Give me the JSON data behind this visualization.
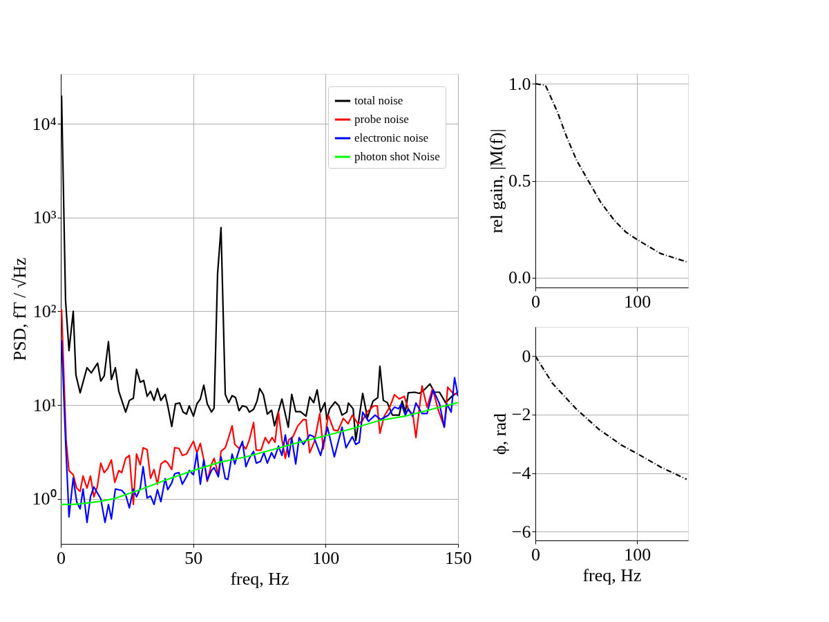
{
  "chart_data": [
    {
      "type": "line",
      "xlabel": "freq, Hz",
      "ylabel": "PSD, fT / √Hz",
      "log": "y",
      "grid": true,
      "legend": "top right",
      "xlim": [
        0,
        150
      ],
      "xticks": [
        0,
        50,
        100,
        150
      ],
      "ylim": [
        0.33,
        34000
      ],
      "yticks": [
        {
          "value": 1,
          "label": "10⁰"
        },
        {
          "value": 10,
          "label": "10¹"
        },
        {
          "value": 100,
          "label": "10²"
        },
        {
          "value": 1000,
          "label": "10³"
        },
        {
          "value": 10000,
          "label": "10⁴"
        }
      ],
      "series": [
        {
          "name": "total noise",
          "color": "#000000",
          "x": [
            0.3,
            1.8,
            3.1,
            4.7,
            5.7,
            7.3,
            9.9,
            11.5,
            13.9,
            15.1,
            16.4,
            18,
            19.1,
            20.6,
            21.9,
            24.5,
            25.9,
            27.4,
            28.6,
            30,
            31.3,
            32.6,
            33.9,
            35.2,
            36.5,
            37.8,
            39.4,
            40.4,
            41.9,
            43.3,
            44.9,
            46.2,
            47.5,
            48.5,
            50.1,
            51.4,
            52.7,
            54,
            55.3,
            56.9,
            57.9,
            59.2,
            60.5,
            62.1,
            63.4,
            64.7,
            66,
            67.3,
            68.6,
            70.2,
            71.2,
            72.8,
            74.1,
            75.1,
            76.5,
            78,
            79.6,
            80.7,
            83.5,
            85.9,
            87.2,
            88.7,
            90.5,
            92.6,
            94,
            95.5,
            96.8,
            98.1,
            99.7,
            100.5,
            101.5,
            103.6,
            105,
            106.2,
            108,
            108.6,
            110.4,
            111.4,
            114,
            115.8,
            117.9,
            119.7,
            120.5,
            121.8,
            123.3,
            125.2,
            127.8,
            128.9,
            130.1,
            131.2,
            133.6,
            135.4,
            137.2,
            139.4,
            141.1,
            143,
            145.3,
            147.7,
            150
          ],
          "values": [
            20000,
            130,
            38,
            100,
            21,
            13.5,
            25,
            22,
            28,
            18,
            20.5,
            47.5,
            18.7,
            25,
            14,
            8.4,
            11.2,
            11.8,
            24,
            17.5,
            18.3,
            12.4,
            14,
            11.2,
            15,
            11.2,
            13,
            9.8,
            5.9,
            10.3,
            10.5,
            8.4,
            8,
            9.8,
            7.6,
            10.3,
            11.6,
            16.3,
            10.3,
            8.4,
            9.3,
            250,
            780,
            13,
            10.6,
            12.6,
            12,
            8.7,
            9.8,
            9.5,
            8.4,
            9,
            11,
            15,
            12.9,
            8,
            8.8,
            6,
            11.6,
            5.8,
            13,
            8.5,
            8.5,
            7.6,
            12.2,
            10.6,
            14.5,
            8.4,
            10.6,
            7,
            9.1,
            10.8,
            9.8,
            7.8,
            8.4,
            10.5,
            9.1,
            4.2,
            13.3,
            7.3,
            11,
            12,
            26,
            11.2,
            10.6,
            7.8,
            7.8,
            11,
            8.4,
            13.5,
            13.7,
            13.3,
            14.5,
            16.8,
            13.7,
            13.7,
            10.6,
            12.4,
            13.7
          ]
        },
        {
          "name": "probe noise",
          "color": "#ff0000",
          "x": [
            0.3,
            2,
            3.1,
            4.7,
            6,
            7.3,
            8.4,
            9.9,
            11.2,
            12.5,
            13.8,
            15.1,
            16.4,
            17.7,
            19.1,
            20.4,
            21.9,
            23,
            24.5,
            25.9,
            27.4,
            28.6,
            30,
            31.1,
            32.6,
            33.9,
            35.2,
            36.5,
            37.8,
            39.4,
            40.4,
            41.9,
            43,
            44.6,
            45.9,
            47.5,
            48.5,
            50.1,
            51.4,
            52.7,
            54,
            55.3,
            56.9,
            57.9,
            59.5,
            60.5,
            62.1,
            63.1,
            64.7,
            65.7,
            67.3,
            68.4,
            69.9,
            71.2,
            72.8,
            73.8,
            75.6,
            77.2,
            78.5,
            79.8,
            80.9,
            82.2,
            83.5,
            84.8,
            86.1,
            87.7,
            89.5,
            91.6,
            92.6,
            94,
            95.8,
            97.8,
            99.1,
            101,
            103.1,
            104.6,
            106.7,
            108.5,
            110.1,
            112.2,
            113.8,
            115.6,
            118.2,
            119.5,
            120.5,
            122.1,
            124.2,
            126,
            127.8,
            129.7,
            131.2,
            133,
            134.1,
            136.4,
            138.3,
            140.4,
            142.4,
            144.8,
            146.1,
            148.2,
            150
          ],
          "values": [
            105,
            4.2,
            2.0,
            1.8,
            1.3,
            1.2,
            1.75,
            1.3,
            1.75,
            1.05,
            1.35,
            2.4,
            1.9,
            2.1,
            2.6,
            1.5,
            2.0,
            1.9,
            2.7,
            2.9,
            0.87,
            3.0,
            2.3,
            3.5,
            3.35,
            1.65,
            2.05,
            1.43,
            2.35,
            2.55,
            2.4,
            2.05,
            3.5,
            3.45,
            2.9,
            3.0,
            3.4,
            4.1,
            3.1,
            3.9,
            2.6,
            1.53,
            2.35,
            2.7,
            1.8,
            3.2,
            3.5,
            4.25,
            6,
            3.8,
            3.45,
            3.8,
            3.4,
            4.25,
            6.5,
            3.3,
            3.3,
            4.5,
            3.9,
            4.5,
            4.0,
            8.4,
            4.25,
            2.7,
            4.25,
            4.6,
            6,
            7,
            7,
            3.1,
            4.1,
            8.1,
            3.4,
            7.8,
            5.4,
            5.3,
            7.2,
            6.3,
            7.8,
            6.3,
            6.7,
            8.4,
            9.8,
            9.8,
            5,
            7.6,
            9.5,
            12.9,
            11.6,
            12.4,
            9.1,
            7.8,
            4.5,
            16,
            9.5,
            15,
            9.1,
            5.8,
            15.5,
            13.3,
            12.9
          ]
        },
        {
          "name": "electronic noise",
          "color": "#0000ff",
          "x": [
            0.3,
            1.8,
            3.1,
            4.7,
            6,
            7.3,
            8.4,
            9.9,
            11.2,
            12.5,
            15.1,
            16.7,
            18,
            19.1,
            20.6,
            23,
            24.5,
            25.9,
            27.4,
            28.6,
            30,
            31.1,
            32.6,
            33.9,
            35.2,
            36.5,
            37.8,
            39.4,
            40.4,
            41.9,
            43,
            44.6,
            45.9,
            47.5,
            48.5,
            50.1,
            51.4,
            52.7,
            54,
            55.3,
            56.9,
            57.9,
            59.5,
            60.5,
            62.1,
            63.1,
            64.7,
            65.7,
            67.3,
            68.6,
            69.9,
            71.2,
            72.8,
            73.8,
            75.4,
            76.7,
            78,
            79.6,
            80.7,
            82.2,
            83.5,
            84.8,
            86.1,
            87.2,
            88.7,
            90,
            91.6,
            94,
            95.5,
            98.1,
            100.7,
            103.3,
            106.2,
            107.7,
            110.1,
            111.4,
            112.7,
            114,
            116.2,
            118.7,
            120.8,
            123.7,
            126,
            127.6,
            128.6,
            130.1,
            131.2,
            132.8,
            134.1,
            136.4,
            138.3,
            140.6,
            143,
            144.8,
            145.8,
            147.4,
            148.7,
            150
          ],
          "values": [
            49,
            4.2,
            0.64,
            1.67,
            0.93,
            0.78,
            1.27,
            0.56,
            1.05,
            1.34,
            1.0,
            0.56,
            0.87,
            0.61,
            1.27,
            1.23,
            1.1,
            0.8,
            1.27,
            1.05,
            1.3,
            2.2,
            1.02,
            1.07,
            0.87,
            1.25,
            0.93,
            1.64,
            1.25,
            1.48,
            1.85,
            1.9,
            1.43,
            1.72,
            2.0,
            1.8,
            3.1,
            1.43,
            2.6,
            1.58,
            2.0,
            2.15,
            1.72,
            2.8,
            1.64,
            1.61,
            3.0,
            2.35,
            3.3,
            4.1,
            2.2,
            2.7,
            3.2,
            2.4,
            2.5,
            3.1,
            2.4,
            3.1,
            2.7,
            3.65,
            2.9,
            4.8,
            2.8,
            4.5,
            2.35,
            4.5,
            3.8,
            4.8,
            4.6,
            2.9,
            5.8,
            2.8,
            5.8,
            3.5,
            4.6,
            3.8,
            4.0,
            8.4,
            6.7,
            7.8,
            7,
            7.8,
            9.5,
            9.1,
            10.3,
            7.8,
            9.1,
            7.6,
            10.5,
            8.1,
            8.1,
            14.5,
            10.3,
            5.8,
            10.3,
            8.4,
            19.6,
            12.4
          ]
        },
        {
          "name": "photon shot Noise",
          "color": "#00ff00",
          "x": [
            0,
            5,
            10,
            15,
            20,
            30,
            40,
            50,
            60,
            70,
            80,
            90,
            100,
            110,
            120,
            130,
            140,
            150
          ],
          "values": [
            0.87,
            0.87,
            0.9,
            0.94,
            1.0,
            1.25,
            1.6,
            2.0,
            2.45,
            2.8,
            3.35,
            4.0,
            4.7,
            5.6,
            6.8,
            7.6,
            9.0,
            10.6
          ]
        }
      ]
    },
    {
      "type": "line",
      "ylabel": "rel gain, |M(f)|",
      "grid": true,
      "line_style": "dashdot",
      "xlim": [
        0,
        150
      ],
      "xticks": [
        0,
        100
      ],
      "ylim": [
        -0.05,
        1.05
      ],
      "yticks": [
        {
          "value": 0,
          "label": "0.0"
        },
        {
          "value": 0.5,
          "label": "0.5"
        },
        {
          "value": 1,
          "label": "1.0"
        }
      ],
      "series": [
        {
          "color": "#000000",
          "x": [
            0,
            10,
            21.6,
            30.4,
            40.5,
            52,
            64,
            77.7,
            89,
            100.5,
            123,
            148.6
          ],
          "values": [
            1.0,
            0.99,
            0.855,
            0.73,
            0.605,
            0.5,
            0.39,
            0.295,
            0.235,
            0.195,
            0.125,
            0.082
          ]
        }
      ]
    },
    {
      "type": "line",
      "xlabel": "freq, Hz",
      "ylabel": "ϕ, rad",
      "grid": true,
      "line_style": "dashdot",
      "xlim": [
        0,
        150
      ],
      "xticks": [
        0,
        100
      ],
      "ylim": [
        -6.3,
        1
      ],
      "yticks": [
        {
          "value": -6,
          "label": "−6"
        },
        {
          "value": -4,
          "label": "−4"
        },
        {
          "value": -2,
          "label": "−2"
        },
        0
      ],
      "series": [
        {
          "color": "#000000",
          "x": [
            0,
            17,
            40,
            62,
            84.5,
            100.5,
            123,
            148.6
          ],
          "values": [
            0,
            -0.94,
            -1.8,
            -2.49,
            -3.04,
            -3.34,
            -3.79,
            -4.21
          ]
        }
      ]
    }
  ]
}
